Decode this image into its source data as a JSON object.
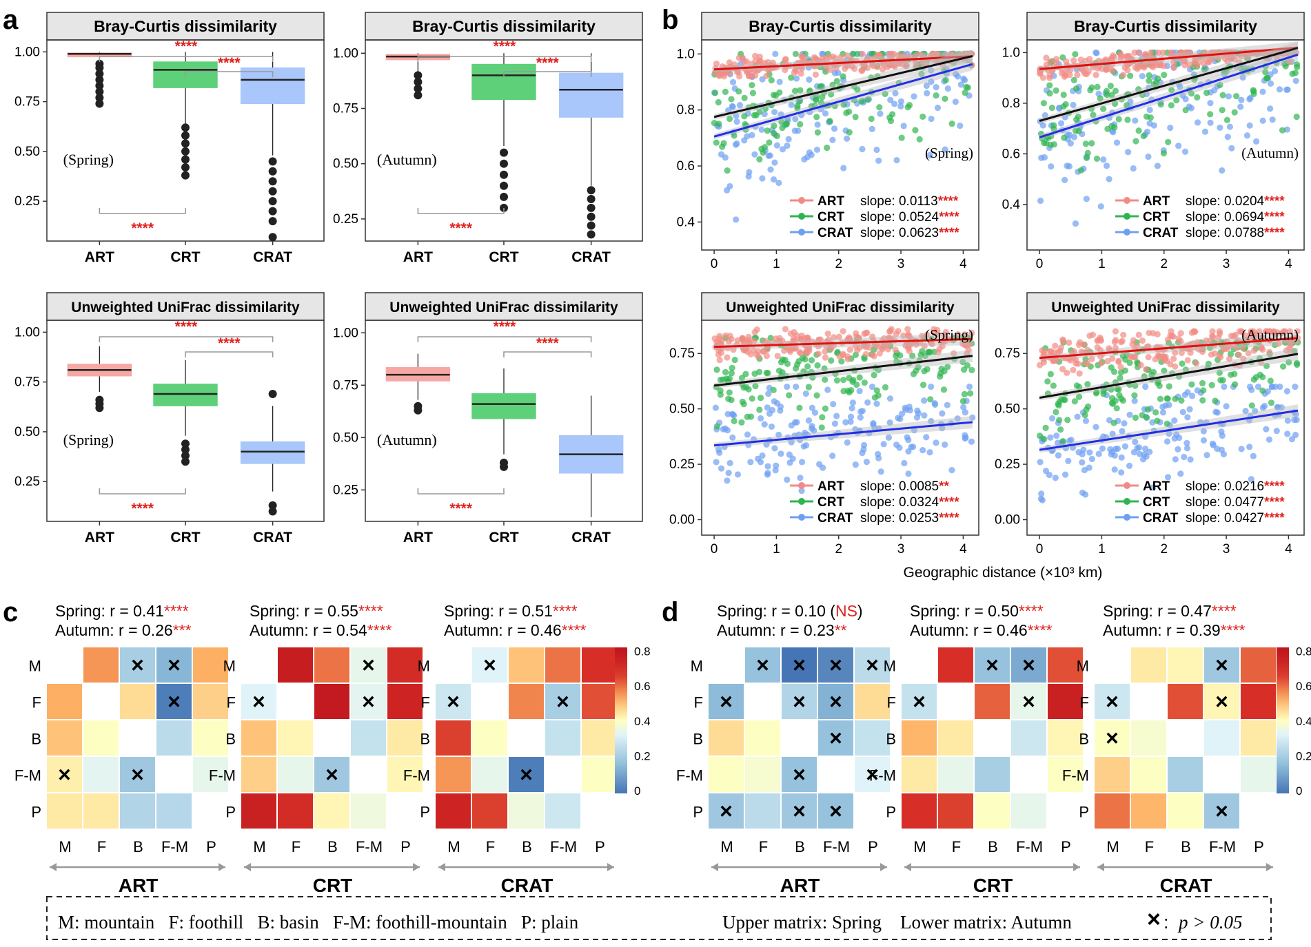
{
  "panel_letters": [
    "a",
    "b",
    "c",
    "d"
  ],
  "colors": {
    "ART": "#f08a85",
    "CRT": "#2db450",
    "CRAT": "#5b8ff0",
    "ART_line": "#e01010",
    "CRT_line": "#111111",
    "CRAT_line": "#1f2fe8",
    "sig": "#e0201c"
  },
  "chart_data": [
    {
      "id": "a",
      "type": "box",
      "title": "Bray-Curtis dissimilarity",
      "season": "(Spring)",
      "categories": [
        "ART",
        "CRT",
        "CRAT"
      ],
      "yticks": [
        0.25,
        0.5,
        0.75,
        1.0
      ],
      "ytick_labels": [
        "0.25",
        "0.50",
        "0.75",
        "1.00"
      ],
      "ylim": [
        0.05,
        1.06
      ],
      "boxes": [
        {
          "group": "ART",
          "q1": 0.975,
          "median": 0.99,
          "q3": 0.995,
          "lo": 0.96,
          "hi": 1.0,
          "outliers": [
            0.74,
            0.77,
            0.8,
            0.83,
            0.86,
            0.89,
            0.92,
            0.94
          ]
        },
        {
          "group": "CRT",
          "q1": 0.82,
          "median": 0.91,
          "q3": 0.95,
          "lo": 0.64,
          "hi": 1.0,
          "outliers": [
            0.38,
            0.42,
            0.46,
            0.5,
            0.54,
            0.58,
            0.62
          ]
        },
        {
          "group": "CRAT",
          "q1": 0.74,
          "median": 0.86,
          "q3": 0.92,
          "lo": 0.48,
          "hi": 1.0,
          "outliers": [
            0.07,
            0.15,
            0.2,
            0.25,
            0.3,
            0.35,
            0.4,
            0.45
          ]
        }
      ],
      "brackets": [
        {
          "from": "ART",
          "to": "CRAT",
          "pos": "top",
          "label": "****"
        },
        {
          "from": "CRT",
          "to": "CRAT",
          "pos": "top2",
          "label": "****"
        },
        {
          "from": "ART",
          "to": "CRT",
          "pos": "bottom",
          "label": "****"
        }
      ]
    },
    {
      "id": "a",
      "type": "box",
      "title": "Bray-Curtis dissimilarity",
      "season": "(Autumn)",
      "categories": [
        "ART",
        "CRT",
        "CRAT"
      ],
      "yticks": [
        0.25,
        0.5,
        0.75,
        1.0
      ],
      "ytick_labels": [
        "0.25",
        "0.50",
        "0.75",
        "1.00"
      ],
      "ylim": [
        0.15,
        1.06
      ],
      "boxes": [
        {
          "group": "ART",
          "q1": 0.97,
          "median": 0.985,
          "q3": 0.995,
          "lo": 0.9,
          "hi": 1.0,
          "outliers": [
            0.81,
            0.84,
            0.87,
            0.9
          ]
        },
        {
          "group": "CRT",
          "q1": 0.79,
          "median": 0.9,
          "q3": 0.95,
          "lo": 0.58,
          "hi": 1.0,
          "outliers": [
            0.3,
            0.35,
            0.4,
            0.45,
            0.5,
            0.55
          ]
        },
        {
          "group": "CRAT",
          "q1": 0.71,
          "median": 0.835,
          "q3": 0.91,
          "lo": 0.4,
          "hi": 1.0,
          "outliers": [
            0.18,
            0.22,
            0.26,
            0.3,
            0.34,
            0.38
          ]
        }
      ],
      "brackets": [
        {
          "from": "ART",
          "to": "CRAT",
          "pos": "top",
          "label": "****"
        },
        {
          "from": "CRT",
          "to": "CRAT",
          "pos": "top2",
          "label": "****"
        },
        {
          "from": "ART",
          "to": "CRT",
          "pos": "bottom",
          "label": "****"
        }
      ]
    },
    {
      "id": "a",
      "type": "box",
      "title": "Unweighted UniFrac dissimilarity",
      "season": "(Spring)",
      "categories": [
        "ART",
        "CRT",
        "CRAT"
      ],
      "yticks": [
        0.25,
        0.5,
        0.75,
        1.0
      ],
      "ytick_labels": [
        "0.25",
        "0.50",
        "0.75",
        "1.00"
      ],
      "ylim": [
        0.05,
        1.06
      ],
      "boxes": [
        {
          "group": "ART",
          "q1": 0.78,
          "median": 0.81,
          "q3": 0.84,
          "lo": 0.7,
          "hi": 0.93,
          "outliers": [
            0.62,
            0.64,
            0.66
          ]
        },
        {
          "group": "CRT",
          "q1": 0.63,
          "median": 0.69,
          "q3": 0.74,
          "lo": 0.48,
          "hi": 0.86,
          "outliers": [
            0.35,
            0.38,
            0.41,
            0.44
          ]
        },
        {
          "group": "CRAT",
          "q1": 0.34,
          "median": 0.4,
          "q3": 0.45,
          "lo": 0.2,
          "hi": 0.63,
          "outliers": [
            0.1,
            0.13,
            0.69
          ]
        }
      ],
      "brackets": [
        {
          "from": "ART",
          "to": "CRAT",
          "pos": "top",
          "label": "****"
        },
        {
          "from": "CRT",
          "to": "CRAT",
          "pos": "top2",
          "label": "****"
        },
        {
          "from": "ART",
          "to": "CRT",
          "pos": "bottom",
          "label": "****"
        }
      ]
    },
    {
      "id": "a",
      "type": "box",
      "title": "Unweighted UniFrac dissimilarity",
      "season": "(Autumn)",
      "categories": [
        "ART",
        "CRT",
        "CRAT"
      ],
      "yticks": [
        0.25,
        0.5,
        0.75,
        1.0
      ],
      "ytick_labels": [
        "0.25",
        "0.50",
        "0.75",
        "1.00"
      ],
      "ylim": [
        0.1,
        1.06
      ],
      "boxes": [
        {
          "group": "ART",
          "q1": 0.77,
          "median": 0.8,
          "q3": 0.835,
          "lo": 0.68,
          "hi": 0.9,
          "outliers": [
            0.63,
            0.65
          ]
        },
        {
          "group": "CRT",
          "q1": 0.59,
          "median": 0.66,
          "q3": 0.71,
          "lo": 0.42,
          "hi": 0.83,
          "outliers": [
            0.36,
            0.38
          ]
        },
        {
          "group": "CRAT",
          "q1": 0.33,
          "median": 0.42,
          "q3": 0.51,
          "lo": 0.12,
          "hi": 0.7,
          "outliers": []
        }
      ],
      "brackets": [
        {
          "from": "ART",
          "to": "CRAT",
          "pos": "top",
          "label": "****"
        },
        {
          "from": "CRT",
          "to": "CRAT",
          "pos": "top2",
          "label": "****"
        },
        {
          "from": "ART",
          "to": "CRT",
          "pos": "bottom",
          "label": "****"
        }
      ]
    },
    {
      "id": "b",
      "type": "scatter",
      "title": "Bray-Curtis dissimilarity",
      "season": "(Spring)",
      "xticks": [
        0,
        1,
        2,
        3,
        4
      ],
      "xlim": [
        -0.2,
        4.25
      ],
      "yticks": [
        0.4,
        0.6,
        0.8,
        1.0
      ],
      "ytick_labels": [
        "0.4",
        "0.6",
        "0.8",
        "1.0"
      ],
      "ylim": [
        0.3,
        1.05
      ],
      "series": [
        {
          "name": "ART",
          "intercept": 0.945,
          "slope": 0.0113,
          "slope_label": "slope: 0.0113",
          "sig": "****",
          "ymin": 0.92,
          "ymax": 1.0
        },
        {
          "name": "CRT",
          "intercept": 0.775,
          "slope": 0.0524,
          "slope_label": "slope: 0.0524",
          "sig": "****",
          "ymin": 0.5,
          "ymax": 1.0
        },
        {
          "name": "CRAT",
          "intercept": 0.705,
          "slope": 0.0623,
          "slope_label": "slope: 0.0623",
          "sig": "****",
          "ymin": 0.32,
          "ymax": 1.0
        }
      ]
    },
    {
      "id": "b",
      "type": "scatter",
      "title": "Bray-Curtis dissimilarity",
      "season": "(Autumn)",
      "xticks": [
        0,
        1,
        2,
        3,
        4
      ],
      "xlim": [
        -0.2,
        4.25
      ],
      "yticks": [
        0.4,
        0.6,
        0.8,
        1.0
      ],
      "ytick_labels": [
        "0.4",
        "0.6",
        "0.8",
        "1.0"
      ],
      "ylim": [
        0.22,
        1.05
      ],
      "series": [
        {
          "name": "ART",
          "intercept": 0.935,
          "slope": 0.0204,
          "slope_label": "slope: 0.0204",
          "sig": "****",
          "ymin": 0.9,
          "ymax": 1.0
        },
        {
          "name": "CRT",
          "intercept": 0.73,
          "slope": 0.0694,
          "slope_label": "slope: 0.0694",
          "sig": "****",
          "ymin": 0.45,
          "ymax": 1.0
        },
        {
          "name": "CRAT",
          "intercept": 0.665,
          "slope": 0.0788,
          "slope_label": "slope: 0.0788",
          "sig": "****",
          "ymin": 0.25,
          "ymax": 1.0
        }
      ]
    },
    {
      "id": "b",
      "type": "scatter",
      "title": "Unweighted UniFrac dissimilarity",
      "season": "(Spring)",
      "xticks": [
        0,
        1,
        2,
        3,
        4
      ],
      "xlim": [
        -0.2,
        4.25
      ],
      "yticks": [
        0.0,
        0.25,
        0.5,
        0.75
      ],
      "ytick_labels": [
        "0.00",
        "0.25",
        "0.50",
        "0.75"
      ],
      "ylim": [
        -0.07,
        0.9
      ],
      "series": [
        {
          "name": "ART",
          "intercept": 0.78,
          "slope": 0.0085,
          "slope_label": "slope: 0.0085",
          "sig": "**",
          "ymin": 0.72,
          "ymax": 0.86
        },
        {
          "name": "CRT",
          "intercept": 0.605,
          "slope": 0.0324,
          "slope_label": "slope: 0.0324",
          "sig": "****",
          "ymin": 0.4,
          "ymax": 0.82
        },
        {
          "name": "CRAT",
          "intercept": 0.335,
          "slope": 0.0253,
          "slope_label": "slope: 0.0253",
          "sig": "****",
          "ymin": 0.13,
          "ymax": 0.6
        }
      ]
    },
    {
      "id": "b",
      "type": "scatter",
      "title": "Unweighted UniFrac dissimilarity",
      "season": "(Autumn)",
      "xticks": [
        0,
        1,
        2,
        3,
        4
      ],
      "xlim": [
        -0.2,
        4.25
      ],
      "yticks": [
        0.0,
        0.25,
        0.5,
        0.75
      ],
      "ytick_labels": [
        "0.00",
        "0.25",
        "0.50",
        "0.75"
      ],
      "ylim": [
        -0.07,
        0.9
      ],
      "series": [
        {
          "name": "ART",
          "intercept": 0.73,
          "slope": 0.0216,
          "slope_label": "slope: 0.0216",
          "sig": "****",
          "ymin": 0.66,
          "ymax": 0.85
        },
        {
          "name": "CRT",
          "intercept": 0.55,
          "slope": 0.0477,
          "slope_label": "slope: 0.0477",
          "sig": "****",
          "ymin": 0.35,
          "ymax": 0.8
        },
        {
          "name": "CRAT",
          "intercept": 0.315,
          "slope": 0.0427,
          "slope_label": "slope: 0.0427",
          "sig": "****",
          "ymin": 0.08,
          "ymax": 0.6
        }
      ]
    },
    {
      "id": "c",
      "type": "heatmap",
      "title": "ART",
      "spring_prefix": "Spring: r = 0.41",
      "spring_sig": "****",
      "autumn_prefix": "Autumn: r = 0.26",
      "autumn_sig": "***",
      "rows": [
        "M",
        "F",
        "B",
        "F-M",
        "P"
      ],
      "cols": [
        "M",
        "F",
        "B",
        "F-M",
        "P"
      ],
      "values": [
        [
          null,
          0.58,
          0.22,
          0.15,
          0.55
        ],
        [
          0.55,
          null,
          0.48,
          0.02,
          0.5
        ],
        [
          0.52,
          0.42,
          null,
          0.26,
          0.42
        ],
        [
          0.45,
          0.35,
          0.2,
          null,
          0.36
        ],
        [
          0.46,
          0.46,
          0.24,
          0.25,
          null
        ]
      ],
      "x_marks": [
        [
          0,
          2
        ],
        [
          0,
          3
        ],
        [
          1,
          3
        ],
        [
          3,
          0
        ],
        [
          3,
          2
        ]
      ]
    },
    {
      "id": "c",
      "type": "heatmap",
      "title": "CRT",
      "spring_prefix": "Spring: r = 0.55",
      "spring_sig": "****",
      "autumn_prefix": "Autumn: r = 0.54",
      "autumn_sig": "****",
      "rows": [
        "M",
        "F",
        "B",
        "F-M",
        "P"
      ],
      "cols": [
        "M",
        "F",
        "B",
        "F-M",
        "P"
      ],
      "values": [
        [
          null,
          0.8,
          0.62,
          0.36,
          0.72
        ],
        [
          0.34,
          null,
          0.82,
          0.35,
          0.76
        ],
        [
          0.52,
          0.44,
          null,
          0.28,
          0.46
        ],
        [
          0.5,
          0.36,
          0.2,
          null,
          0.44
        ],
        [
          0.78,
          0.72,
          0.44,
          0.38,
          null
        ]
      ],
      "x_marks": [
        [
          0,
          3
        ],
        [
          1,
          0
        ],
        [
          1,
          3
        ],
        [
          3,
          2
        ]
      ]
    },
    {
      "id": "c",
      "type": "heatmap",
      "title": "CRAT",
      "spring_prefix": "Spring: r = 0.51",
      "spring_sig": "****",
      "autumn_prefix": "Autumn: r = 0.46",
      "autumn_sig": "****",
      "rows": [
        "M",
        "F",
        "B",
        "F-M",
        "P"
      ],
      "cols": [
        "M",
        "F",
        "B",
        "F-M",
        "P"
      ],
      "values": [
        [
          null,
          0.34,
          0.52,
          0.62,
          0.7
        ],
        [
          0.3,
          null,
          0.6,
          0.22,
          0.66
        ],
        [
          0.68,
          0.42,
          null,
          0.28,
          0.46
        ],
        [
          0.58,
          0.36,
          0.02,
          null,
          0.42
        ],
        [
          0.76,
          0.68,
          0.38,
          0.3,
          null
        ]
      ],
      "x_marks": [
        [
          0,
          1
        ],
        [
          1,
          0
        ],
        [
          1,
          3
        ],
        [
          3,
          2
        ]
      ]
    },
    {
      "id": "d",
      "type": "heatmap",
      "title": "ART",
      "spring_prefix": "Spring: r = 0.10 (",
      "spring_sig": "NS",
      "spring_suffix": ")",
      "autumn_prefix": "Autumn: r = 0.23",
      "autumn_sig": "**",
      "rows": [
        "M",
        "F",
        "B",
        "F-M",
        "P"
      ],
      "cols": [
        "M",
        "F",
        "B",
        "F-M",
        "P"
      ],
      "values": [
        [
          null,
          0.18,
          0.0,
          0.04,
          0.26
        ],
        [
          0.16,
          null,
          0.24,
          0.14,
          0.48
        ],
        [
          0.48,
          0.42,
          null,
          0.18,
          0.28
        ],
        [
          0.42,
          0.4,
          0.18,
          null,
          0.34
        ],
        [
          0.2,
          0.26,
          0.2,
          0.18,
          null
        ]
      ],
      "x_marks": [
        [
          0,
          1
        ],
        [
          0,
          2
        ],
        [
          0,
          3
        ],
        [
          0,
          4
        ],
        [
          1,
          0
        ],
        [
          1,
          2
        ],
        [
          1,
          3
        ],
        [
          2,
          3
        ],
        [
          3,
          2
        ],
        [
          3,
          4
        ],
        [
          4,
          0
        ],
        [
          4,
          2
        ],
        [
          4,
          3
        ]
      ]
    },
    {
      "id": "d",
      "type": "heatmap",
      "title": "CRT",
      "spring_prefix": "Spring: r = 0.50",
      "spring_sig": "****",
      "autumn_prefix": "Autumn: r = 0.46",
      "autumn_sig": "****",
      "rows": [
        "M",
        "F",
        "B",
        "F-M",
        "P"
      ],
      "cols": [
        "M",
        "F",
        "B",
        "F-M",
        "P"
      ],
      "values": [
        [
          null,
          0.7,
          0.18,
          0.12,
          0.66
        ],
        [
          0.28,
          null,
          0.64,
          0.36,
          0.78
        ],
        [
          0.54,
          0.46,
          null,
          0.3,
          0.44
        ],
        [
          0.46,
          0.36,
          0.22,
          null,
          0.42
        ],
        [
          0.7,
          0.68,
          0.42,
          0.36,
          null
        ]
      ],
      "x_marks": [
        [
          0,
          2
        ],
        [
          0,
          3
        ],
        [
          1,
          0
        ],
        [
          1,
          3
        ]
      ]
    },
    {
      "id": "d",
      "type": "heatmap",
      "title": "CRAT",
      "spring_prefix": "Spring: r = 0.47",
      "spring_sig": "****",
      "autumn_prefix": "Autumn: r = 0.39",
      "autumn_sig": "****",
      "rows": [
        "M",
        "F",
        "B",
        "F-M",
        "P"
      ],
      "cols": [
        "M",
        "F",
        "B",
        "F-M",
        "P"
      ],
      "values": [
        [
          null,
          0.46,
          0.44,
          0.2,
          0.64
        ],
        [
          0.3,
          null,
          0.66,
          0.44,
          0.7
        ],
        [
          0.42,
          0.4,
          null,
          0.34,
          0.46
        ],
        [
          0.5,
          0.42,
          0.22,
          null,
          0.36
        ],
        [
          0.62,
          0.54,
          0.42,
          0.2,
          null
        ]
      ],
      "x_marks": [
        [
          0,
          3
        ],
        [
          1,
          0
        ],
        [
          1,
          3
        ],
        [
          2,
          0
        ],
        [
          4,
          3
        ]
      ]
    }
  ],
  "legend_labels": [
    "ART",
    "CRT",
    "CRAT"
  ],
  "xlabel_b": "Geographic distance (×10³ km)",
  "colorbar_c": {
    "ticks": [
      "0",
      "0.2",
      "0.4",
      "0.6",
      "0.8"
    ]
  },
  "colorbar_d": {
    "ticks": [
      "0",
      "0.2",
      "0.4",
      "0.6",
      "0.8"
    ]
  },
  "footer": {
    "abbrev": "M: mountain   F: foothill   B: basin   F-M: foothill-mountain   P: plain",
    "matrix_note": "Upper matrix: Spring    Lower matrix: Autumn",
    "x_symbol": "×",
    "p_note": "p > 0.05",
    "p_prefix": ": "
  }
}
